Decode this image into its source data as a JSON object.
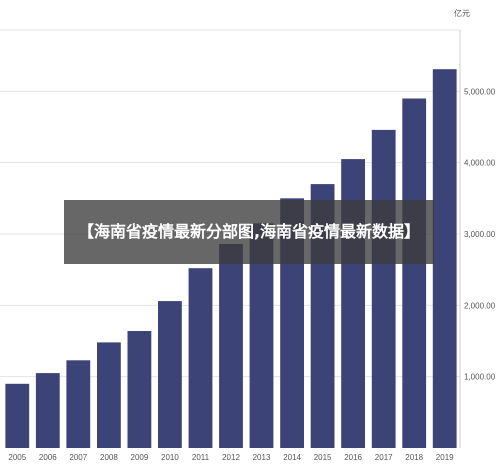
{
  "overlay_title": "【海南省疫情最新分部图,海南省疫情最新数据】",
  "chart_data": {
    "type": "bar",
    "title": "",
    "xlabel": "",
    "ylabel": "",
    "unit": "亿元",
    "categories": [
      "2005",
      "2006",
      "2007",
      "2008",
      "2009",
      "2010",
      "2011",
      "2012",
      "2013",
      "2014",
      "2015",
      "2016",
      "2017",
      "2018",
      "2019"
    ],
    "values": [
      900,
      1050,
      1230,
      1480,
      1640,
      2060,
      2520,
      2860,
      3150,
      3500,
      3700,
      4050,
      4460,
      4900,
      5310
    ],
    "ylim": [
      0,
      6000
    ],
    "yticks": [
      1000,
      2000,
      3000,
      4000,
      5000
    ],
    "ytick_labels": [
      "1,000.00",
      "2,000.00",
      "3,000.00",
      "4,000.00",
      "5,000.00"
    ],
    "grid": true,
    "colors": {
      "bar": "#3b4377",
      "grid": "#e3e3e3",
      "axis": "#cccccc"
    }
  }
}
